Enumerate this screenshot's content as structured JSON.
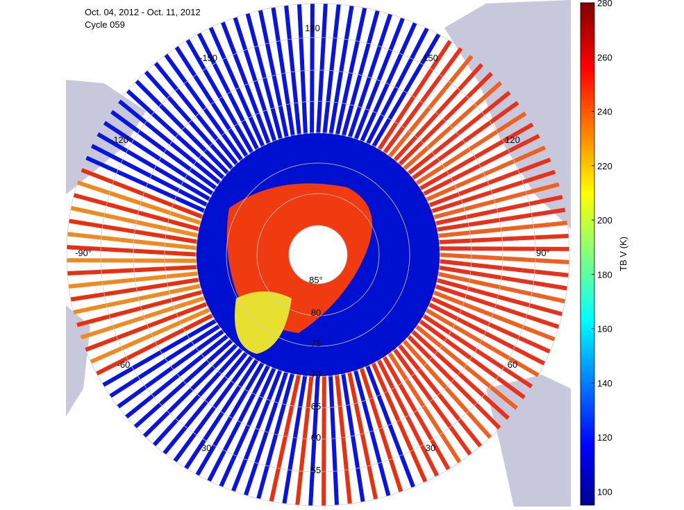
{
  "header": {
    "date_range": "Oct. 04, 2012 - Oct. 11, 2012",
    "cycle": "Cycle 059"
  },
  "map": {
    "meridian_labels": [
      "180",
      "150",
      "-150",
      "120",
      "-120",
      "90°",
      "-90°",
      "60",
      "-60",
      "30",
      "-30"
    ],
    "latitude_labels": [
      "85°",
      "80",
      "75",
      "70",
      "65",
      "60",
      "55"
    ]
  },
  "colorbar": {
    "label": "TB V (K)",
    "lim": [
      95,
      280
    ],
    "ticks": [
      100,
      120,
      140,
      160,
      180,
      200,
      220,
      240,
      260,
      280
    ]
  }
}
